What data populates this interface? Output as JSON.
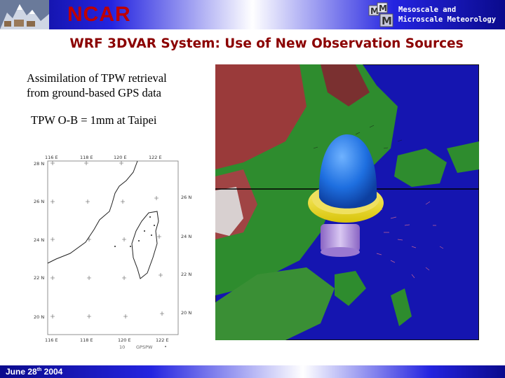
{
  "header": {
    "org_name": "NCAR",
    "division_line1": "Mesoscale and",
    "division_line2": "Microscale Meteorology",
    "colors": {
      "title_red": "#c00000",
      "banner_blue": "#2424e0"
    }
  },
  "slide": {
    "title": "WRF 3DVAR System: Use of New Observation Sources",
    "description_line1": "Assimilation of TPW retrieval",
    "description_line2": "from ground-based GPS data",
    "obs_statement": "TPW O-B = 1mm at Taipei"
  },
  "left_map": {
    "lon_labels": [
      "116 E",
      "118 E",
      "120 E",
      "122 E"
    ],
    "lat_labels": [
      "28 N",
      "26 N",
      "24 N",
      "22 N",
      "20 N"
    ],
    "footer_left": "10",
    "footer_mid": "GPSPW"
  },
  "right_map": {
    "icon_name": "tpw-increment-3d-plot",
    "colors": {
      "ocean": "#1515b0",
      "land_green": "#2e8c2e",
      "terrain_red": "#9a3a3a",
      "isosurface_blue": "#1e6fe0",
      "isosurface_yellow": "#f2e21a",
      "isosurface_purple": "#a080d0"
    }
  },
  "footer": {
    "date_prefix": "June 28",
    "date_sup": "th",
    "date_suffix": " 2004"
  }
}
